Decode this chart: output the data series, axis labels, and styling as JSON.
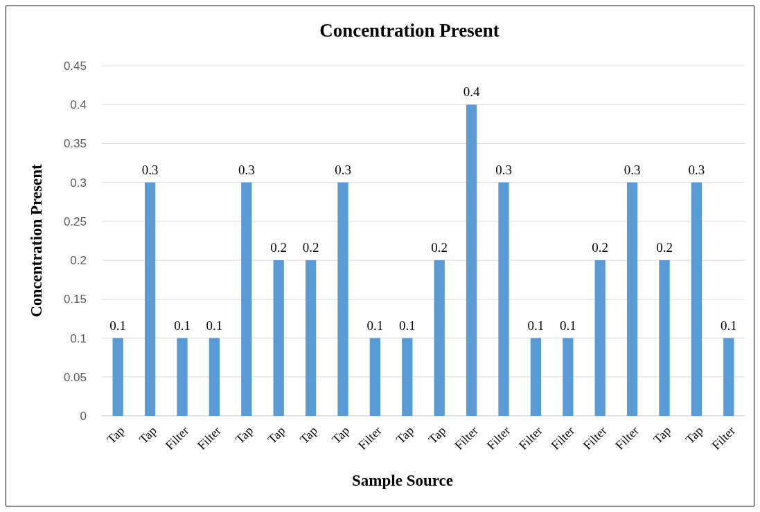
{
  "chart_data": {
    "type": "bar",
    "title": "Concentration Present",
    "xlabel": "Sample Source",
    "ylabel": "Concentration Present",
    "categories": [
      "Tap",
      "Tap",
      "Filter",
      "Filter",
      "Tap",
      "Tap",
      "Tap",
      "Tap",
      "Filter",
      "Tap",
      "Tap",
      "Filter",
      "Filter",
      "Filter",
      "Filter",
      "Filter",
      "Filter",
      "Tap",
      "Tap",
      "Filter"
    ],
    "values": [
      0.1,
      0.3,
      0.1,
      0.1,
      0.3,
      0.2,
      0.2,
      0.3,
      0.1,
      0.1,
      0.2,
      0.4,
      0.3,
      0.1,
      0.1,
      0.2,
      0.3,
      0.2,
      0.3,
      0.1
    ],
    "color": "#5b9bd5",
    "ylim": [
      0,
      0.45
    ],
    "yticks": [
      0,
      0.05,
      0.1,
      0.15,
      0.2,
      0.25,
      0.3,
      0.35,
      0.4,
      0.45
    ],
    "grid": "y",
    "data_labels": true
  }
}
